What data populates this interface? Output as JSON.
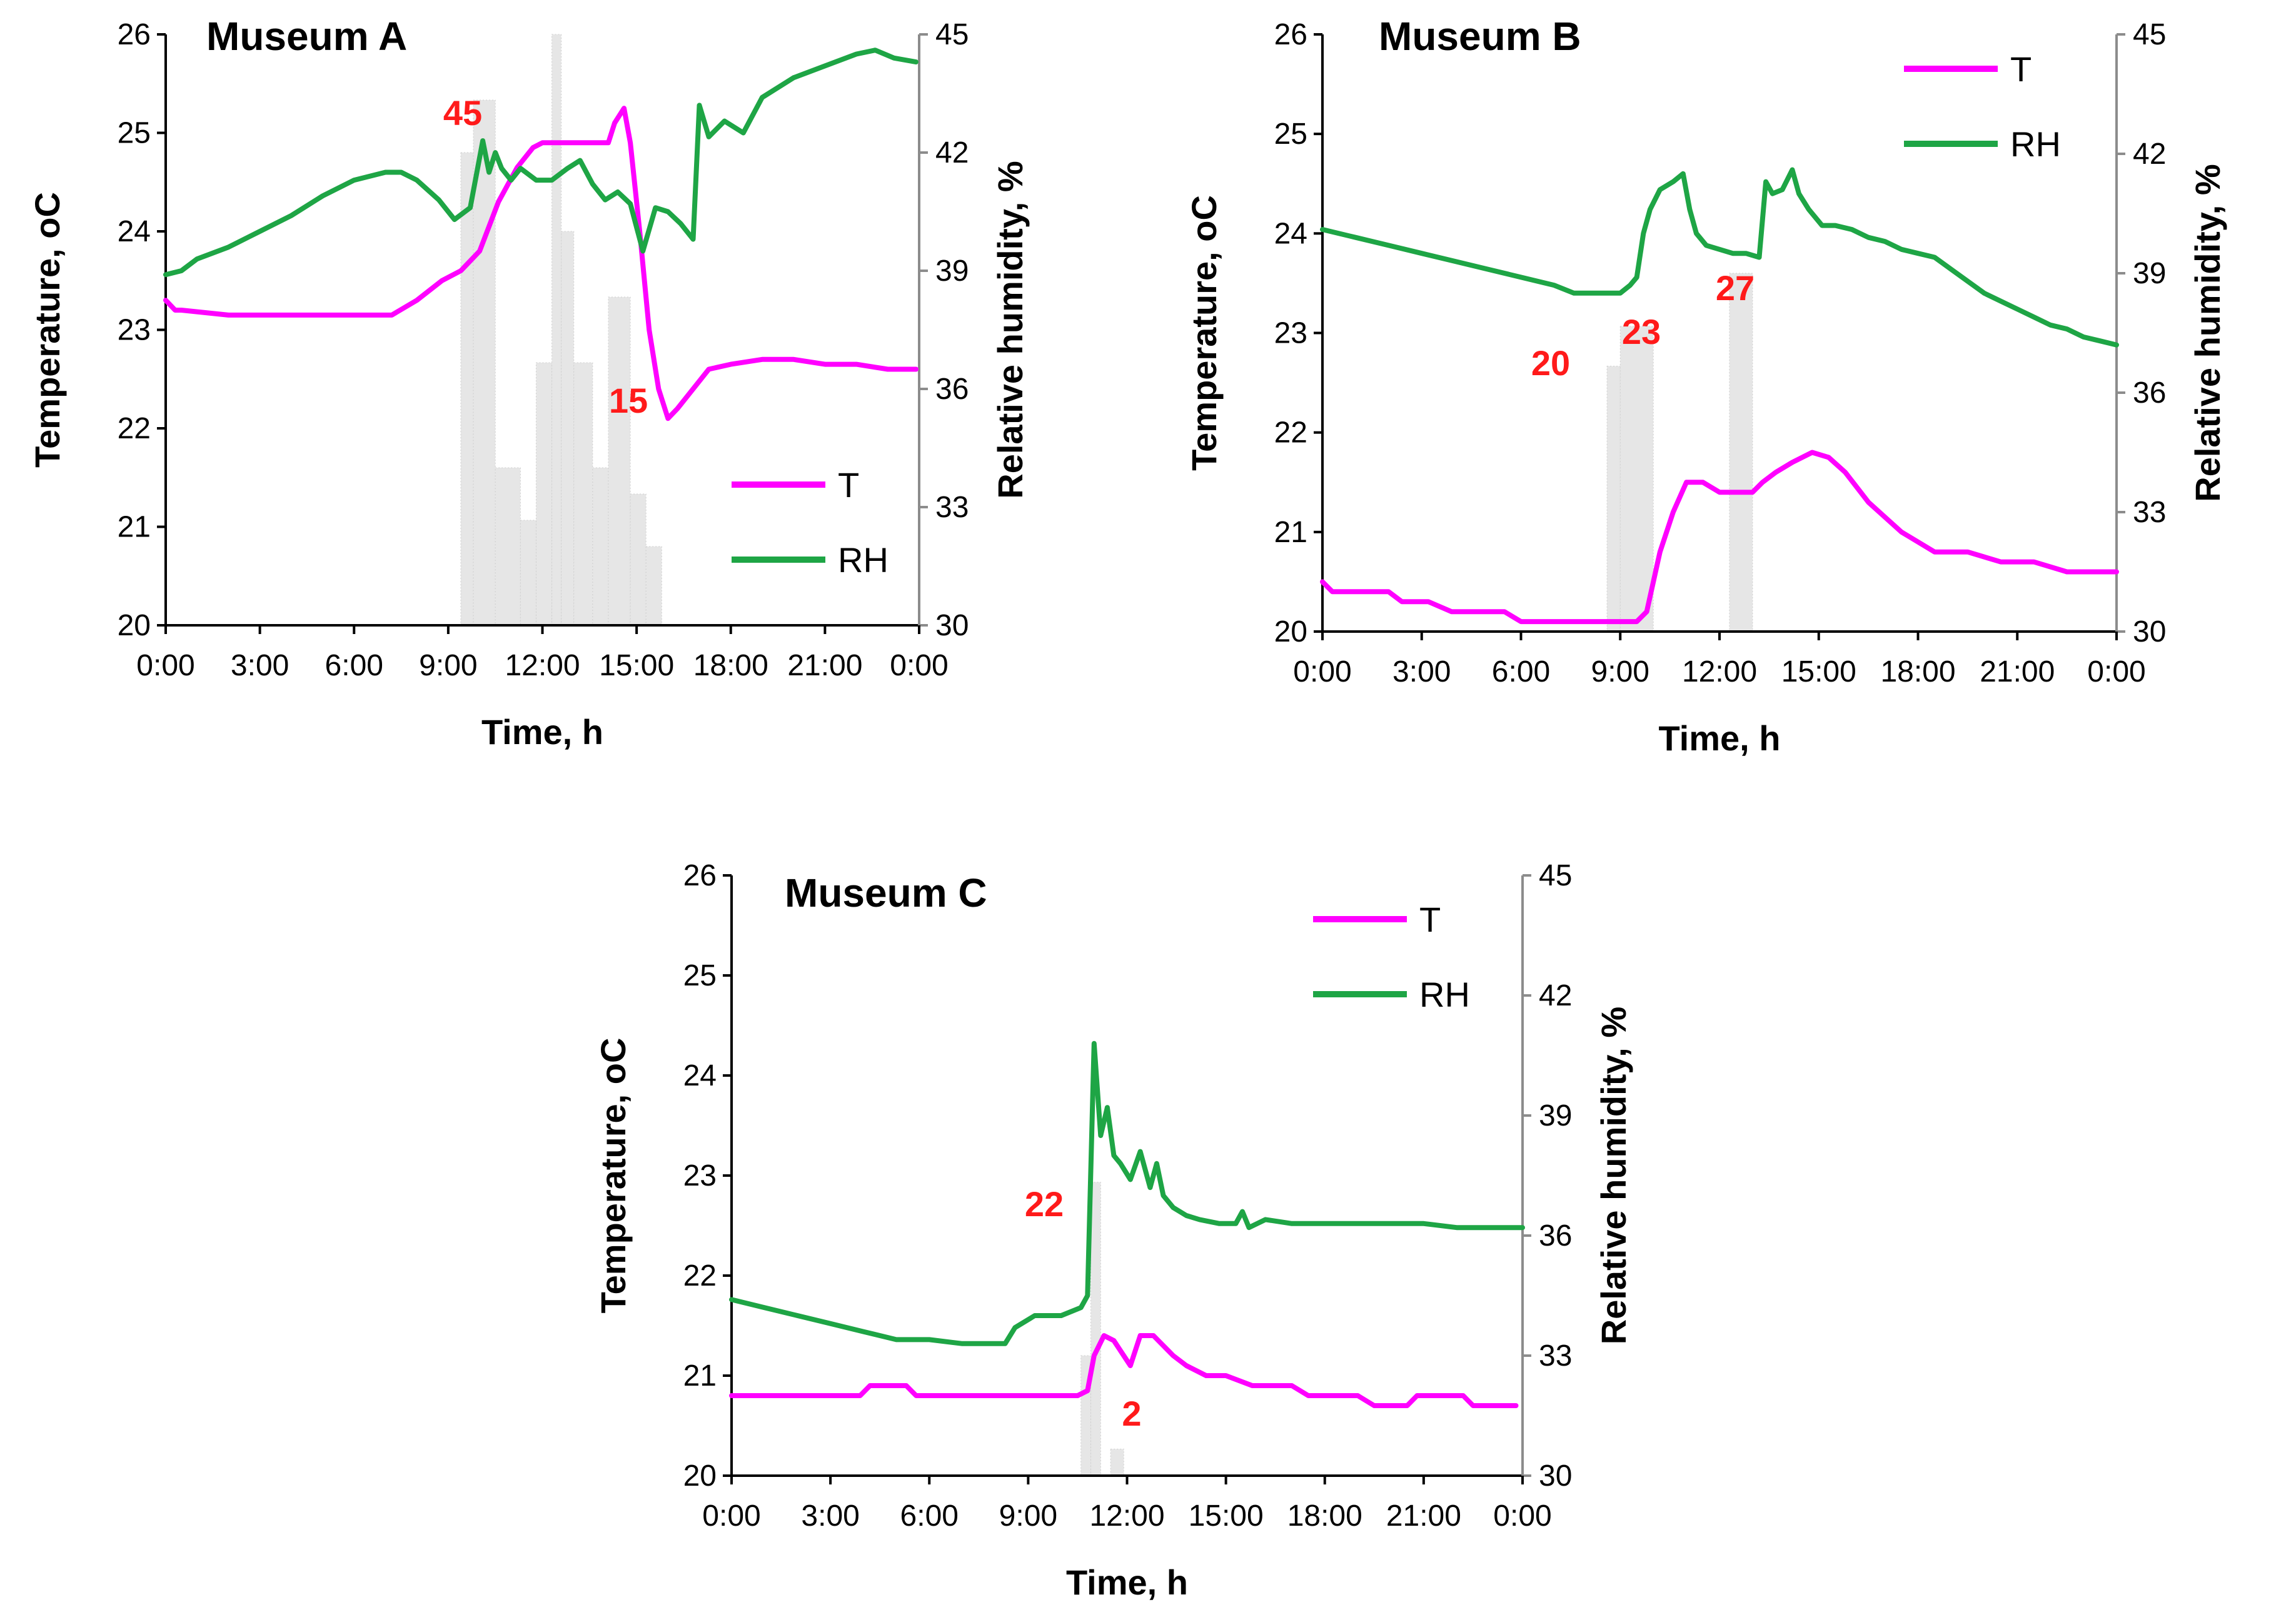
{
  "chart_data": [
    {
      "type": "line",
      "title": "Museum A",
      "xlabel": "Time, h",
      "ylabel": "Temperature, oC",
      "y2label": "Relative humidity, %",
      "xticks": [
        "0:00",
        "3:00",
        "6:00",
        "9:00",
        "12:00",
        "15:00",
        "18:00",
        "21:00",
        "0:00"
      ],
      "xlim": [
        0,
        24
      ],
      "ylim": [
        20,
        26
      ],
      "y2lim": [
        30,
        45
      ],
      "yticks": [
        "20",
        "21",
        "22",
        "23",
        "24",
        "25",
        "26"
      ],
      "y2ticks": [
        "30",
        "33",
        "36",
        "39",
        "42",
        "45"
      ],
      "legend_position": "bottom-right",
      "annotations": [
        "45",
        "15"
      ],
      "occupancy": [
        [
          9.4,
          9.8,
          36
        ],
        [
          9.8,
          10.5,
          40
        ],
        [
          10.5,
          11.3,
          12
        ],
        [
          11.3,
          11.8,
          8
        ],
        [
          11.8,
          12.3,
          20
        ],
        [
          12.3,
          12.6,
          45
        ],
        [
          12.6,
          13.0,
          30
        ],
        [
          13.0,
          13.6,
          20
        ],
        [
          13.6,
          14.1,
          12
        ],
        [
          14.1,
          14.8,
          25
        ],
        [
          14.8,
          15.3,
          10
        ],
        [
          15.3,
          15.8,
          6
        ]
      ],
      "series": [
        {
          "name": "T",
          "axis": "left",
          "color": "#ff00ff",
          "x": [
            0,
            0.3,
            0.5,
            2,
            4,
            6,
            7.2,
            8,
            8.8,
            9.4,
            10,
            10.6,
            11.2,
            11.7,
            12,
            13,
            14.1,
            14.3,
            14.6,
            14.8,
            15.1,
            15.4,
            15.7,
            16.0,
            16.3,
            16.8,
            17.3,
            18,
            19,
            20,
            21,
            22,
            23,
            23.9
          ],
          "y": [
            23.3,
            23.2,
            23.2,
            23.15,
            23.15,
            23.15,
            23.15,
            23.3,
            23.5,
            23.6,
            23.8,
            24.3,
            24.65,
            24.85,
            24.9,
            24.9,
            24.9,
            25.1,
            25.25,
            24.9,
            24.0,
            23.0,
            22.4,
            22.1,
            22.2,
            22.4,
            22.6,
            22.65,
            22.7,
            22.7,
            22.65,
            22.65,
            22.6,
            22.6
          ]
        },
        {
          "name": "RH",
          "axis": "right",
          "color": "#1ea545",
          "x": [
            0,
            0.5,
            1,
            2,
            3,
            4,
            5,
            6,
            7,
            7.5,
            8,
            8.7,
            9.2,
            9.7,
            10.1,
            10.3,
            10.5,
            10.7,
            11,
            11.3,
            11.8,
            12.3,
            12.8,
            13.2,
            13.6,
            14,
            14.4,
            14.8,
            15.2,
            15.6,
            16,
            16.4,
            16.8,
            17.0,
            17.3,
            17.8,
            18.4,
            19,
            20,
            21,
            22,
            22.6,
            23.2,
            23.9
          ],
          "y": [
            38.9,
            39,
            39.3,
            39.6,
            40,
            40.4,
            40.9,
            41.3,
            41.5,
            41.5,
            41.3,
            40.8,
            40.3,
            40.6,
            42.3,
            41.5,
            42,
            41.6,
            41.3,
            41.6,
            41.3,
            41.3,
            41.6,
            41.8,
            41.2,
            40.8,
            41,
            40.7,
            39.5,
            40.6,
            40.5,
            40.2,
            39.8,
            43.2,
            42.4,
            42.8,
            42.5,
            43.4,
            43.9,
            44.2,
            44.5,
            44.6,
            44.4,
            44.3
          ]
        }
      ]
    },
    {
      "type": "line",
      "title": "Museum B",
      "xlabel": "Time, h",
      "ylabel": "Temperature, oC",
      "y2label": "Relative humidity, %",
      "xticks": [
        "0:00",
        "3:00",
        "6:00",
        "9:00",
        "12:00",
        "15:00",
        "18:00",
        "21:00",
        "0:00"
      ],
      "xlim": [
        0,
        24
      ],
      "ylim": [
        20,
        26
      ],
      "y2lim": [
        30,
        45
      ],
      "yticks": [
        "20",
        "21",
        "22",
        "23",
        "24",
        "25",
        "26"
      ],
      "y2ticks": [
        "30",
        "33",
        "36",
        "39",
        "42",
        "45"
      ],
      "legend_position": "top-right",
      "annotations": [
        "20",
        "23",
        "27"
      ],
      "occupancy": [
        [
          8.6,
          9.0,
          20
        ],
        [
          9.0,
          10.0,
          23
        ],
        [
          12.3,
          13.0,
          27
        ]
      ],
      "series": [
        {
          "name": "T",
          "axis": "left",
          "color": "#ff00ff",
          "x": [
            0,
            0.3,
            0.6,
            1.2,
            2.0,
            2.4,
            3.2,
            3.9,
            4.5,
            5.5,
            6.0,
            7.0,
            8.0,
            9.0,
            9.5,
            9.8,
            10.2,
            10.6,
            11.0,
            11.5,
            12.0,
            12.5,
            13.0,
            13.3,
            13.7,
            14.2,
            14.8,
            15.3,
            15.8,
            16.5,
            17.5,
            18.5,
            19.5,
            20.5,
            21.5,
            22.5,
            24
          ],
          "y": [
            20.5,
            20.4,
            20.4,
            20.4,
            20.4,
            20.3,
            20.3,
            20.2,
            20.2,
            20.2,
            20.1,
            20.1,
            20.1,
            20.1,
            20.1,
            20.2,
            20.8,
            21.2,
            21.5,
            21.5,
            21.4,
            21.4,
            21.4,
            21.5,
            21.6,
            21.7,
            21.8,
            21.75,
            21.6,
            21.3,
            21.0,
            20.8,
            20.8,
            20.7,
            20.7,
            20.6,
            20.6
          ]
        },
        {
          "name": "RH",
          "axis": "right",
          "color": "#1ea545",
          "x": [
            0,
            1,
            2,
            3,
            4,
            5,
            6,
            7,
            7.6,
            8,
            8.5,
            9,
            9.3,
            9.5,
            9.7,
            9.9,
            10.2,
            10.6,
            10.9,
            11.1,
            11.3,
            11.6,
            12,
            12.4,
            12.8,
            13.2,
            13.4,
            13.6,
            13.9,
            14.2,
            14.4,
            14.7,
            15.1,
            15.5,
            16,
            16.5,
            17,
            17.5,
            18,
            18.5,
            19,
            19.5,
            20,
            20.5,
            21,
            21.5,
            22,
            22.5,
            23,
            23.5,
            24
          ],
          "y": [
            40.1,
            39.9,
            39.7,
            39.5,
            39.3,
            39.1,
            38.9,
            38.7,
            38.5,
            38.5,
            38.5,
            38.5,
            38.7,
            38.9,
            40.0,
            40.6,
            41.1,
            41.3,
            41.5,
            40.6,
            40.0,
            39.7,
            39.6,
            39.5,
            39.5,
            39.4,
            41.3,
            41.0,
            41.1,
            41.6,
            41.0,
            40.6,
            40.2,
            40.2,
            40.1,
            39.9,
            39.8,
            39.6,
            39.5,
            39.4,
            39.1,
            38.8,
            38.5,
            38.3,
            38.1,
            37.9,
            37.7,
            37.6,
            37.4,
            37.3,
            37.2
          ]
        }
      ]
    },
    {
      "type": "line",
      "title": "Museum C",
      "xlabel": "Time, h",
      "ylabel": "Temperature, oC",
      "y2label": "Relative humidity, %",
      "xticks": [
        "0:00",
        "3:00",
        "6:00",
        "9:00",
        "12:00",
        "15:00",
        "18:00",
        "21:00",
        "0:00"
      ],
      "xlim": [
        0,
        24
      ],
      "ylim": [
        20,
        26
      ],
      "y2lim": [
        30,
        45
      ],
      "yticks": [
        "20",
        "21",
        "22",
        "23",
        "24",
        "25",
        "26"
      ],
      "y2ticks": [
        "30",
        "33",
        "36",
        "39",
        "42",
        "45"
      ],
      "legend_position": "top-right",
      "annotations": [
        "22",
        "2"
      ],
      "occupancy": [
        [
          10.6,
          10.9,
          9
        ],
        [
          10.9,
          11.2,
          22
        ],
        [
          11.5,
          11.9,
          2
        ]
      ],
      "series": [
        {
          "name": "T",
          "axis": "left",
          "color": "#ff00ff",
          "x": [
            0,
            1,
            2,
            3,
            3.9,
            4.2,
            5.3,
            5.6,
            6.5,
            7.5,
            8.5,
            9.5,
            10.5,
            10.8,
            11.0,
            11.3,
            11.6,
            11.9,
            12.1,
            12.4,
            12.8,
            13.1,
            13.4,
            13.8,
            14.4,
            15.0,
            15.8,
            16.5,
            17.0,
            17.5,
            18.2,
            19.0,
            19.5,
            20.5,
            20.8,
            21.2,
            22.2,
            22.5,
            22.8,
            23.8
          ],
          "y": [
            20.8,
            20.8,
            20.8,
            20.8,
            20.8,
            20.9,
            20.9,
            20.8,
            20.8,
            20.8,
            20.8,
            20.8,
            20.8,
            20.85,
            21.2,
            21.4,
            21.35,
            21.2,
            21.1,
            21.4,
            21.4,
            21.3,
            21.2,
            21.1,
            21.0,
            21.0,
            20.9,
            20.9,
            20.9,
            20.8,
            20.8,
            20.8,
            20.7,
            20.7,
            20.8,
            20.8,
            20.8,
            20.7,
            20.7,
            20.7
          ]
        },
        {
          "name": "RH",
          "axis": "right",
          "color": "#1ea545",
          "x": [
            0,
            1,
            2,
            3,
            4,
            5,
            6,
            7,
            7.6,
            8.3,
            8.6,
            9.2,
            10.0,
            10.6,
            10.8,
            11.0,
            11.2,
            11.4,
            11.6,
            11.8,
            12.1,
            12.4,
            12.7,
            12.9,
            13.1,
            13.4,
            13.8,
            14.2,
            14.8,
            15.3,
            15.5,
            15.7,
            16.2,
            17,
            18,
            19,
            20,
            21,
            22,
            23,
            24
          ],
          "y": [
            34.4,
            34.2,
            34.0,
            33.8,
            33.6,
            33.4,
            33.4,
            33.3,
            33.3,
            33.3,
            33.7,
            34.0,
            34.0,
            34.2,
            34.5,
            40.8,
            38.5,
            39.2,
            38.0,
            37.8,
            37.4,
            38.1,
            37.2,
            37.8,
            37.0,
            36.7,
            36.5,
            36.4,
            36.3,
            36.3,
            36.6,
            36.2,
            36.4,
            36.3,
            36.3,
            36.3,
            36.3,
            36.3,
            36.2,
            36.2,
            36.2
          ]
        }
      ]
    }
  ]
}
